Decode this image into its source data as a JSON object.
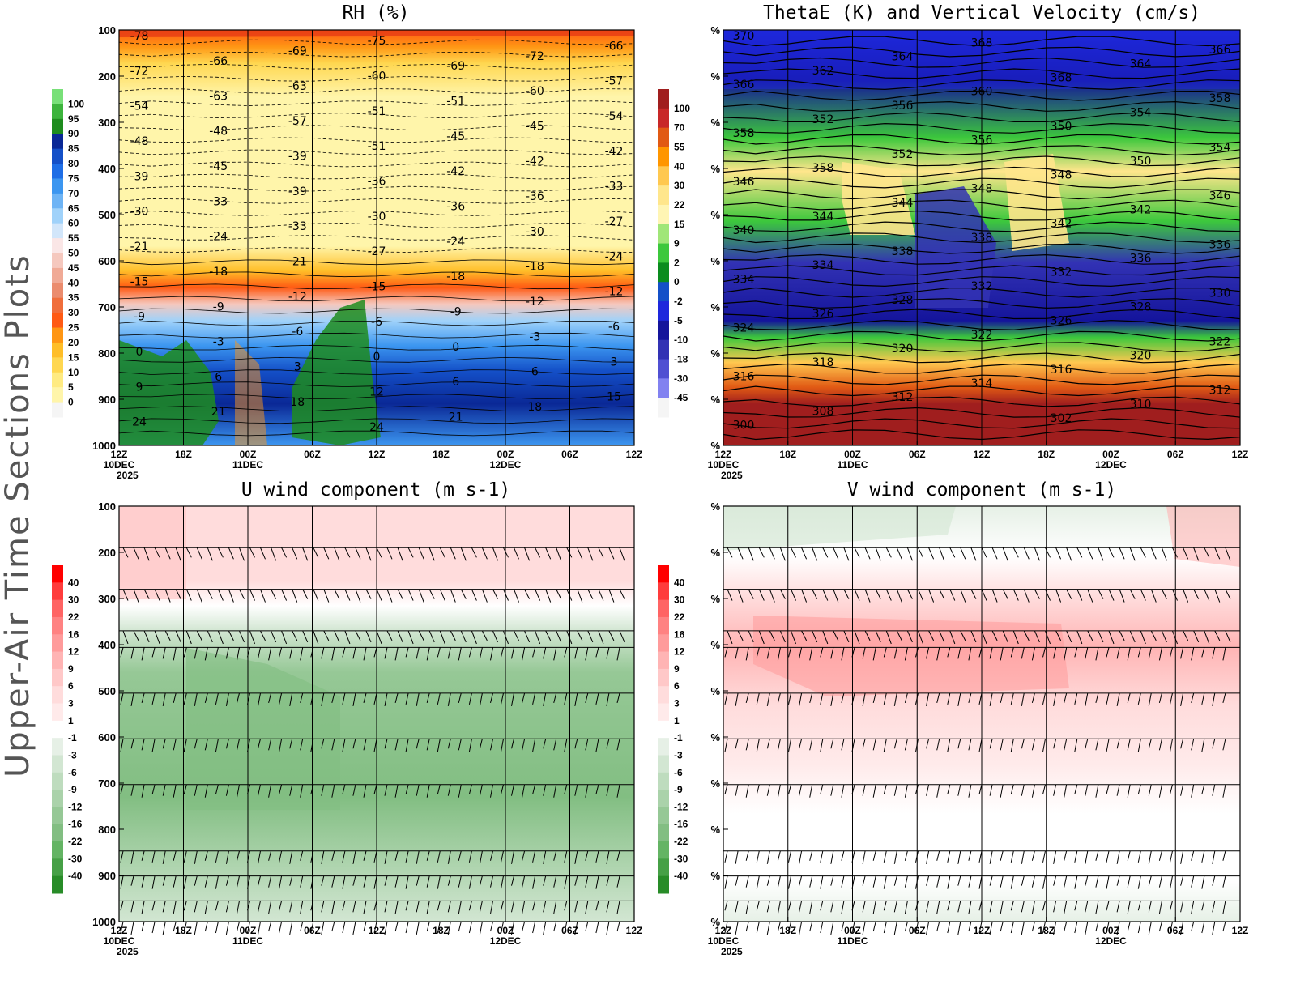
{
  "side_title": "Upper-Air Time Sections Plots",
  "chart_data": [
    {
      "id": "rh",
      "type": "heatmap",
      "title": "RH (%)",
      "y_axis": {
        "ticks": [
          "100",
          "200",
          "300",
          "400",
          "500",
          "600",
          "700",
          "800",
          "900",
          "1000"
        ]
      },
      "x_axis": {
        "ticks": [
          "12Z",
          "18Z",
          "00Z",
          "06Z",
          "12Z",
          "18Z",
          "00Z",
          "06Z",
          "12Z"
        ],
        "sub": [
          "10DEC",
          "",
          "11DEC",
          "",
          "",
          "",
          "12DEC",
          "",
          ""
        ],
        "year": "2025"
      },
      "colorbar": {
        "labels": [
          "100",
          "95",
          "90",
          "85",
          "80",
          "75",
          "70",
          "65",
          "60",
          "55",
          "50",
          "45",
          "40",
          "35",
          "30",
          "25",
          "20",
          "15",
          "10",
          "5",
          "0"
        ],
        "colors": [
          "#78e078",
          "#3cb43c",
          "#1e8c1e",
          "#0a2896",
          "#1450c8",
          "#1e6ee6",
          "#3c96f0",
          "#6eb4f5",
          "#a0d2fa",
          "#d2e6fa",
          "#fae6e6",
          "#f5c8be",
          "#f0aa96",
          "#eb8c6e",
          "#f06e3c",
          "#ff5a14",
          "#ff9614",
          "#ffbe28",
          "#ffd750",
          "#ffeb82",
          "#fff5aa",
          "#f5f5f5"
        ]
      },
      "contour_labels": [
        "-78",
        "-75",
        "-66",
        "-69",
        "-72",
        "-66",
        "-69",
        "-72",
        "-60",
        "-57",
        "-63",
        "-60",
        "-63",
        "-51",
        "-54",
        "-51",
        "-54",
        "-57",
        "-45",
        "-48",
        "-45",
        "-48",
        "-51",
        "-42",
        "-39",
        "-42",
        "-45",
        "-42",
        "-39",
        "-36",
        "-33",
        "-39",
        "-36",
        "-33",
        "-36",
        "-30",
        "-30",
        "-27",
        "-33",
        "-30",
        "-24",
        "-24",
        "-21",
        "-27",
        "-24",
        "-21",
        "-18",
        "-18",
        "-18",
        "-15",
        "-15",
        "-12",
        "-12",
        "-12",
        "-9",
        "-9",
        "-9",
        "-6",
        "-6",
        "-6",
        "-3",
        "-3",
        "0",
        "0",
        "0",
        "3",
        "3",
        "6",
        "6",
        "6",
        "9",
        "12",
        "15",
        "18",
        "18",
        "21",
        "21",
        "24",
        "24"
      ]
    },
    {
      "id": "thetae",
      "type": "heatmap",
      "title": "ThetaE (K) and Vertical Velocity (cm/s)",
      "y_axis": {
        "ticks": [
          "%",
          "%",
          "%",
          "%",
          "%",
          "%",
          "%",
          "%",
          "%",
          "%"
        ]
      },
      "x_axis": {
        "ticks": [
          "12Z",
          "18Z",
          "00Z",
          "06Z",
          "12Z",
          "18Z",
          "00Z",
          "06Z",
          "12Z"
        ],
        "sub": [
          "10DEC",
          "",
          "11DEC",
          "",
          "",
          "",
          "12DEC",
          "",
          ""
        ],
        "year": "2025"
      },
      "colorbar": {
        "labels": [
          "100",
          "70",
          "55",
          "40",
          "30",
          "22",
          "15",
          "9",
          "2",
          "0",
          "-2",
          "-5",
          "-10",
          "-18",
          "-30",
          "-45"
        ],
        "colors": [
          "#a01e1e",
          "#c82828",
          "#e15a14",
          "#ff9600",
          "#ffc850",
          "#ffe68c",
          "#fff5b4",
          "#a0e678",
          "#3cc83c",
          "#0a8c1e",
          "#1450c8",
          "#1e28dc",
          "#14149b",
          "#3232b4",
          "#5050d2",
          "#8282f0",
          "#f5f5f5"
        ]
      },
      "contour_labels": [
        "370",
        "368",
        "366",
        "364",
        "364",
        "362",
        "368",
        "366",
        "360",
        "358",
        "356",
        "354",
        "352",
        "350",
        "358",
        "356",
        "354",
        "352",
        "350",
        "358",
        "348",
        "346",
        "348",
        "346",
        "344",
        "342",
        "344",
        "342",
        "340",
        "338",
        "336",
        "338",
        "336",
        "334",
        "332",
        "334",
        "332",
        "330",
        "328",
        "328",
        "326",
        "326",
        "324",
        "322",
        "322",
        "320",
        "320",
        "318",
        "316",
        "316",
        "314",
        "312",
        "312",
        "310",
        "308",
        "302",
        "300"
      ]
    },
    {
      "id": "u",
      "type": "heatmap",
      "title": "U wind component (m s-1)",
      "y_axis": {
        "ticks": [
          "100",
          "200",
          "300",
          "400",
          "500",
          "600",
          "700",
          "800",
          "900",
          "1000"
        ]
      },
      "x_axis": {
        "ticks": [
          "12Z",
          "18Z",
          "00Z",
          "06Z",
          "12Z",
          "18Z",
          "00Z",
          "06Z",
          "12Z"
        ],
        "sub": [
          "10DEC",
          "",
          "11DEC",
          "",
          "",
          "",
          "12DEC",
          "",
          ""
        ],
        "year": "2025"
      },
      "colorbar": {
        "labels": [
          "40",
          "30",
          "22",
          "16",
          "12",
          "9",
          "6",
          "3",
          "1",
          "-1",
          "-3",
          "-6",
          "-9",
          "-12",
          "-16",
          "-22",
          "-30",
          "-40"
        ],
        "colors": [
          "#ff0000",
          "#ff3c3c",
          "#ff6464",
          "#ff8282",
          "#ff9b9b",
          "#ffb4b4",
          "#ffc8c8",
          "#ffdcdc",
          "#ffeaea",
          "#ffffff",
          "#e6f0e6",
          "#d2e6d2",
          "#bedcbe",
          "#aad2aa",
          "#96c896",
          "#82be82",
          "#64b464",
          "#46a046",
          "#288c28"
        ]
      }
    },
    {
      "id": "v",
      "type": "heatmap",
      "title": "V wind component (m s-1)",
      "y_axis": {
        "ticks": [
          "%",
          "%",
          "%",
          "%",
          "%",
          "%",
          "%",
          "%",
          "%",
          "%"
        ]
      },
      "x_axis": {
        "ticks": [
          "12Z",
          "18Z",
          "00Z",
          "06Z",
          "12Z",
          "18Z",
          "00Z",
          "06Z",
          "12Z"
        ],
        "sub": [
          "10DEC",
          "",
          "11DEC",
          "",
          "",
          "",
          "12DEC",
          "",
          ""
        ],
        "year": "2025"
      },
      "colorbar": {
        "labels": [
          "40",
          "30",
          "22",
          "16",
          "12",
          "9",
          "6",
          "3",
          "1",
          "-1",
          "-3",
          "-6",
          "-9",
          "-12",
          "-16",
          "-22",
          "-30",
          "-40"
        ],
        "colors": [
          "#ff0000",
          "#ff3c3c",
          "#ff6464",
          "#ff8282",
          "#ff9b9b",
          "#ffb4b4",
          "#ffc8c8",
          "#ffdcdc",
          "#ffeaea",
          "#ffffff",
          "#e6f0e6",
          "#d2e6d2",
          "#bedcbe",
          "#aad2aa",
          "#96c896",
          "#82be82",
          "#64b464",
          "#46a046",
          "#288c28"
        ]
      }
    }
  ]
}
